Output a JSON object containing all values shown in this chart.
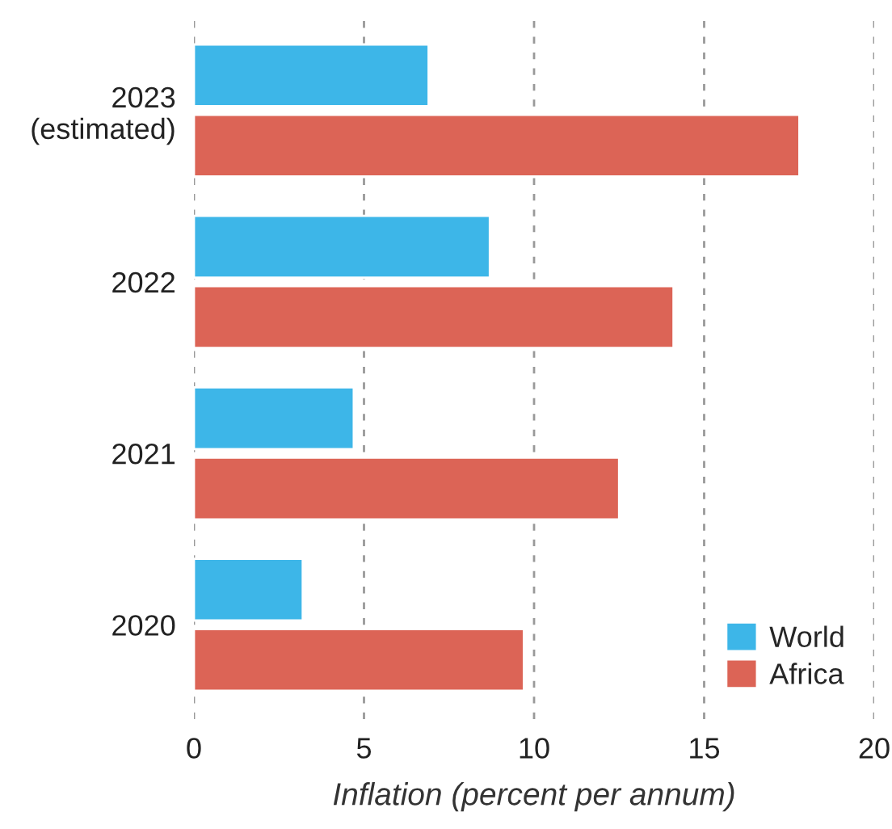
{
  "chart_data": {
    "type": "bar",
    "orientation": "horizontal",
    "xlabel": "Inflation (percent per annum)",
    "categories": [
      "2023\n(estimated)",
      "2022",
      "2021",
      "2020"
    ],
    "series": [
      {
        "name": "World",
        "color": "#3db6e8",
        "values": [
          6.9,
          8.7,
          4.7,
          3.2
        ]
      },
      {
        "name": "Africa",
        "color": "#dc6456",
        "values": [
          17.8,
          14.1,
          12.5,
          9.7
        ]
      }
    ],
    "xlim": [
      0,
      20
    ],
    "xticks": [
      0,
      5,
      10,
      15,
      20
    ],
    "grid": "x",
    "legend": "bottom right"
  }
}
